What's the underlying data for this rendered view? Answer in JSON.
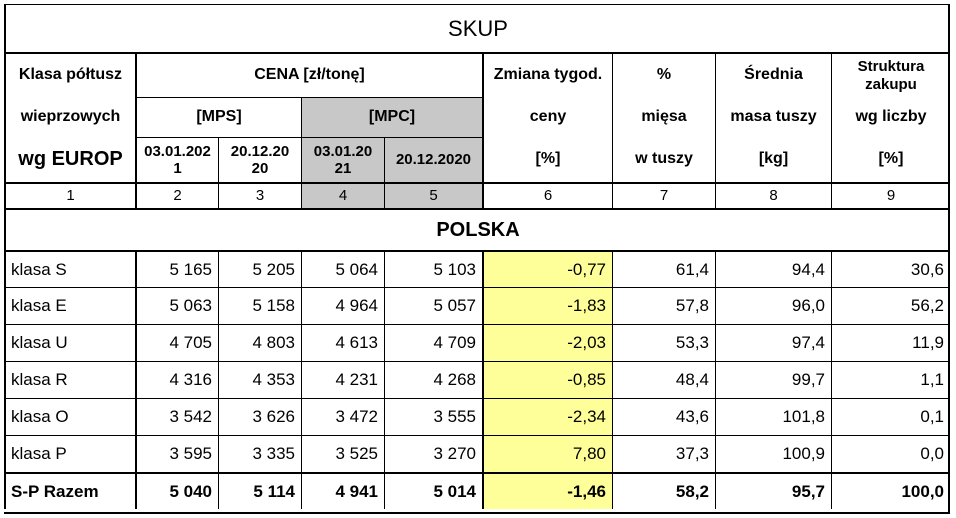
{
  "title": "SKUP",
  "header": {
    "col1": [
      "Klasa półtusz",
      "wieprzowych",
      "wg EUROP"
    ],
    "cena": "CENA [zł/tonę]",
    "mps": "[MPS]",
    "mpc": "[MPC]",
    "dates": [
      "03.01.202\n1",
      "20.12.20\n20",
      "03.01.20\n21",
      "20.12.2020"
    ],
    "zmiana": [
      "Zmiana tygod.",
      "ceny",
      "[%]"
    ],
    "procent": [
      "%",
      "mięsa",
      "w tuszy"
    ],
    "srednia": [
      "Średnia",
      "masa tuszy",
      "[kg]"
    ],
    "struktura": [
      "Struktura\nzakupu",
      "wg liczby",
      "[%]"
    ]
  },
  "index_row": [
    "1",
    "2",
    "3",
    "4",
    "5",
    "6",
    "7",
    "8",
    "9"
  ],
  "section": "POLSKA",
  "rows": [
    [
      "klasa S",
      "5 165",
      "5 205",
      "5 064",
      "5 103",
      "-0,77",
      "61,4",
      "94,4",
      "30,6"
    ],
    [
      "klasa E",
      "5 063",
      "5 158",
      "4 964",
      "5 057",
      "-1,83",
      "57,8",
      "96,0",
      "56,2"
    ],
    [
      "klasa U",
      "4 705",
      "4 803",
      "4 613",
      "4 709",
      "-2,03",
      "53,3",
      "97,4",
      "11,9"
    ],
    [
      "klasa R",
      "4 316",
      "4 353",
      "4 231",
      "4 268",
      "-0,85",
      "48,4",
      "99,7",
      "1,1"
    ],
    [
      "klasa O",
      "3 542",
      "3 626",
      "3 472",
      "3 555",
      "-2,34",
      "43,6",
      "101,8",
      "0,1"
    ],
    [
      "klasa P",
      "3 595",
      "3 335",
      "3 525",
      "3 270",
      "7,80",
      "37,3",
      "100,9",
      "0,0"
    ]
  ],
  "total": [
    "S-P Razem",
    "5 040",
    "5 114",
    "4 941",
    "5 014",
    "-1,46",
    "58,2",
    "95,7",
    "100,0"
  ]
}
